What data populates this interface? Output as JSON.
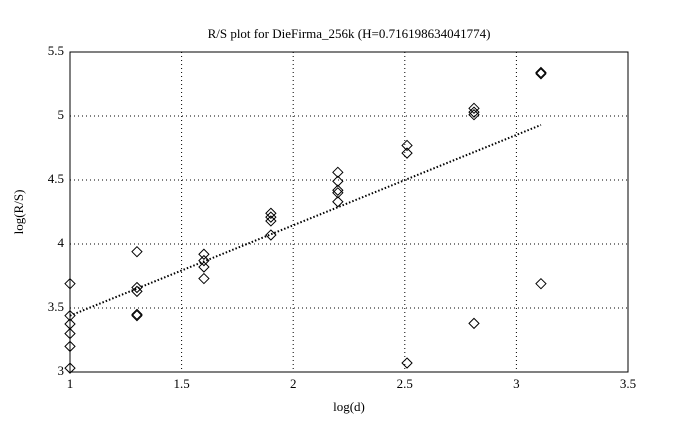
{
  "chart_data": {
    "type": "scatter",
    "title": "R/S plot for DieFirma_256k (H=0.716198634041774)",
    "xlabel": "log(d)",
    "ylabel": "log(R/S)",
    "x": [
      1,
      1,
      1,
      1,
      1,
      1,
      1.3,
      1.3,
      1.3,
      1.3,
      1.3,
      1.6,
      1.6,
      1.6,
      1.6,
      1.9,
      1.9,
      1.9,
      1.9,
      2.2,
      2.2,
      2.2,
      2.2,
      2.2,
      2.51,
      2.51,
      2.51,
      2.81,
      2.81,
      2.81,
      2.81,
      3.11,
      3.11,
      3.11
    ],
    "values": [
      3.69,
      3.44,
      3.375,
      3.3,
      3.2,
      3.03,
      3.94,
      3.66,
      3.63,
      3.45,
      3.44,
      3.92,
      3.87,
      3.82,
      3.73,
      4.24,
      4.21,
      4.18,
      4.07,
      4.56,
      4.49,
      4.42,
      4.4,
      4.33,
      4.77,
      4.71,
      3.07,
      5.06,
      5.03,
      5.01,
      3.38,
      5.34,
      5.33,
      3.69
    ],
    "color": "#000000",
    "fit": {
      "x": [
        1,
        3.11
      ],
      "values": [
        3.44,
        4.93
      ]
    },
    "xlim": [
      1,
      3.5
    ],
    "ylim": [
      3,
      5.5
    ],
    "xticks": [
      1,
      1.5,
      2,
      2.5,
      3,
      3.5
    ],
    "yticks": [
      3,
      3.5,
      4,
      4.5,
      5,
      5.5
    ],
    "grid": true
  }
}
